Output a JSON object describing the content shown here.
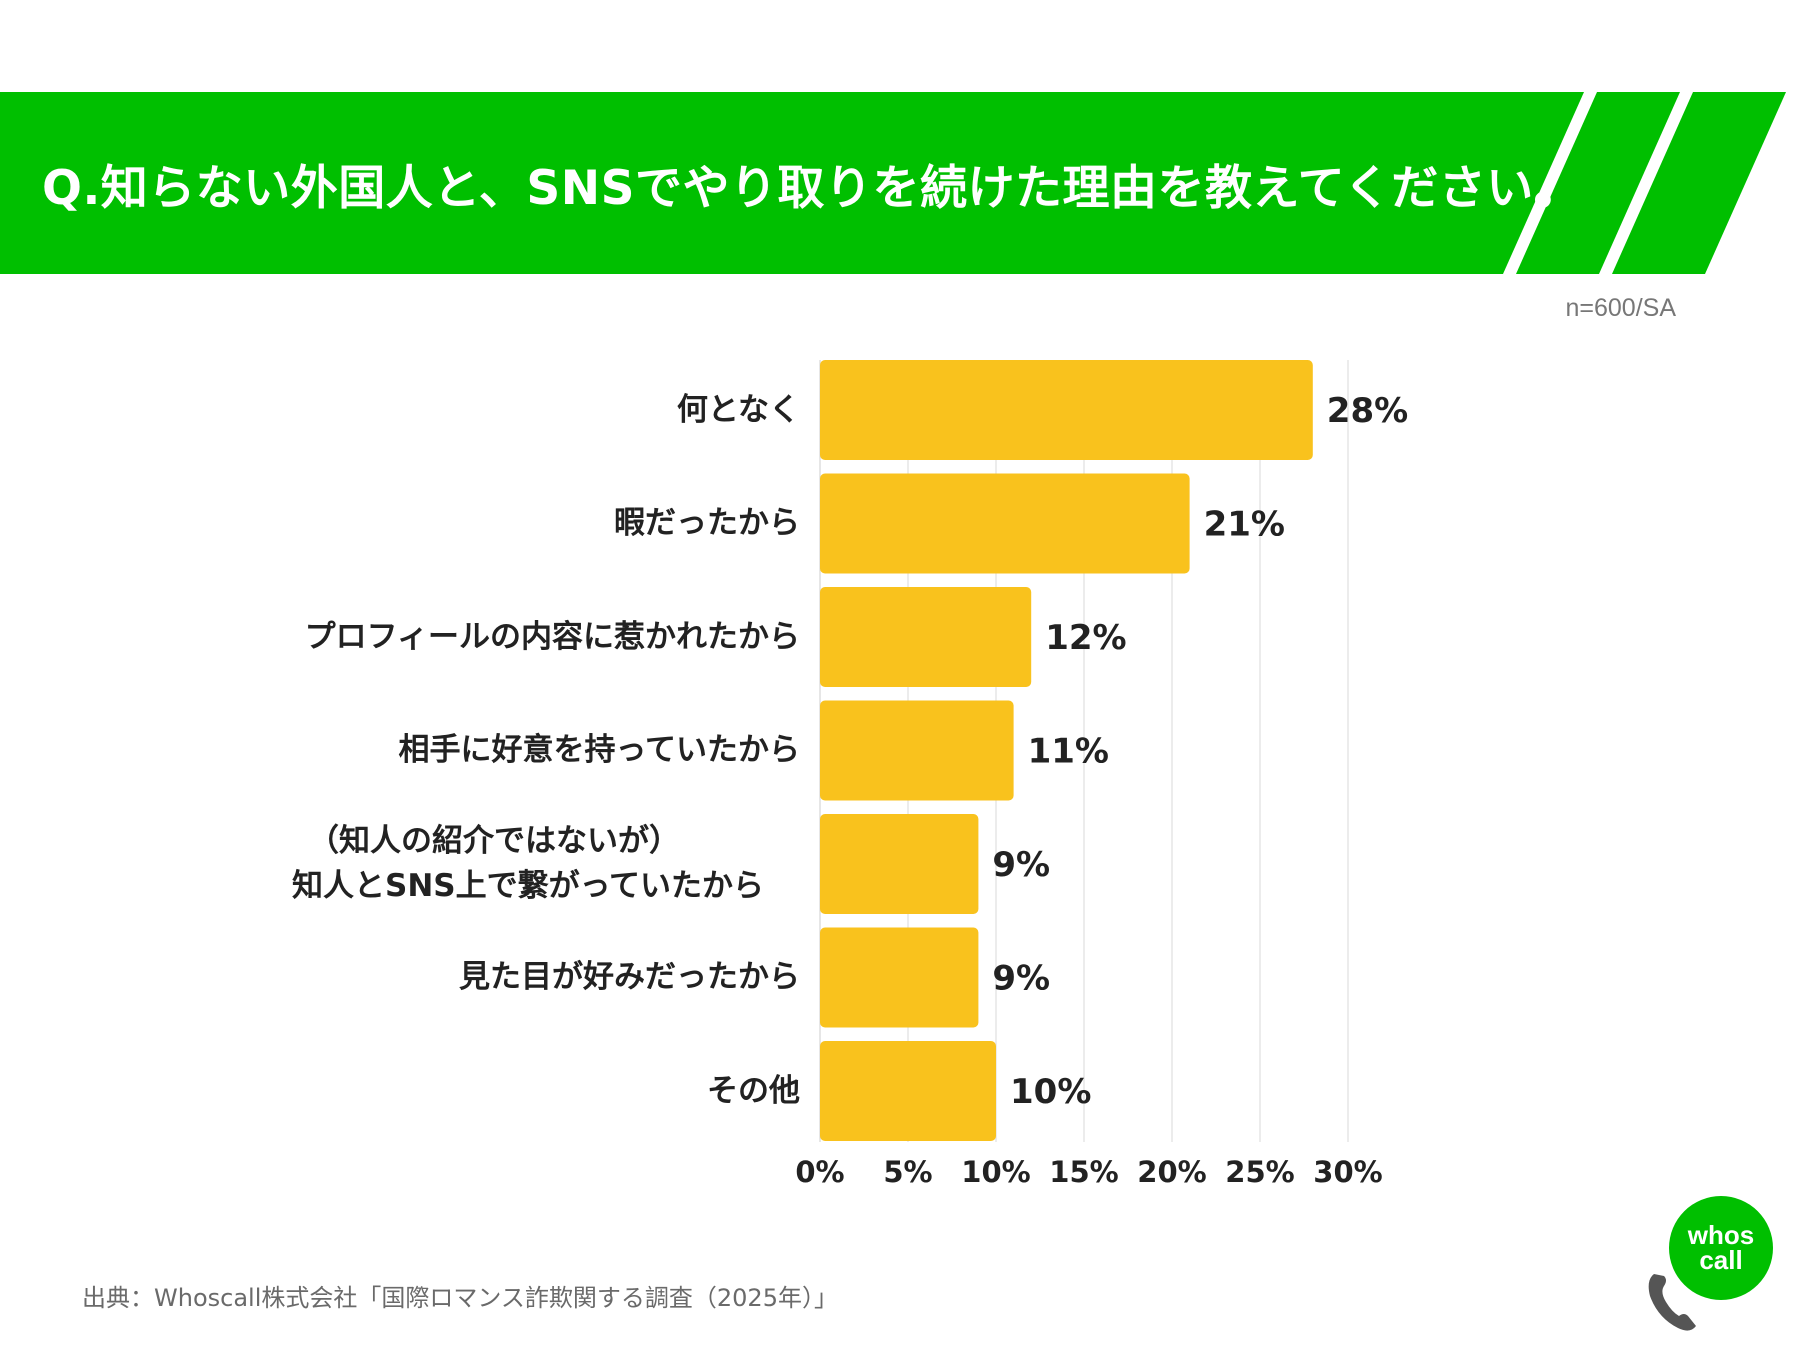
{
  "header": {
    "title": "Q.知らない外国人と、SNSでやり取りを続けた理由を教えてください。",
    "color": "#00bf00"
  },
  "sample_note": "n=600/SA",
  "chart_data": {
    "type": "bar",
    "orientation": "horizontal",
    "categories": [
      "何となく",
      "暇だったから",
      "プロフィールの内容に惹かれたから",
      "相手に好意を持っていたから",
      "（知人の紹介ではないが）\n知人とSNS上で繋がっていたから",
      "見た目が好みだったから",
      "その他"
    ],
    "values": [
      28,
      21,
      12,
      11,
      9,
      9,
      10
    ],
    "value_labels": [
      "28%",
      "21%",
      "12%",
      "11%",
      "9%",
      "9%",
      "10%"
    ],
    "xlim": [
      0,
      30
    ],
    "x_ticks": [
      0,
      5,
      10,
      15,
      20,
      25,
      30
    ],
    "x_tick_labels": [
      "0%",
      "5%",
      "10%",
      "15%",
      "20%",
      "25%",
      "30%"
    ],
    "bar_color": "#f9c21d",
    "grid": true
  },
  "source": "出典：Whoscall株式会社「国際ロマンス詐欺関する調査（2025年）」",
  "logo": {
    "line1": "whos",
    "line2": "call",
    "color": "#00bf00"
  }
}
